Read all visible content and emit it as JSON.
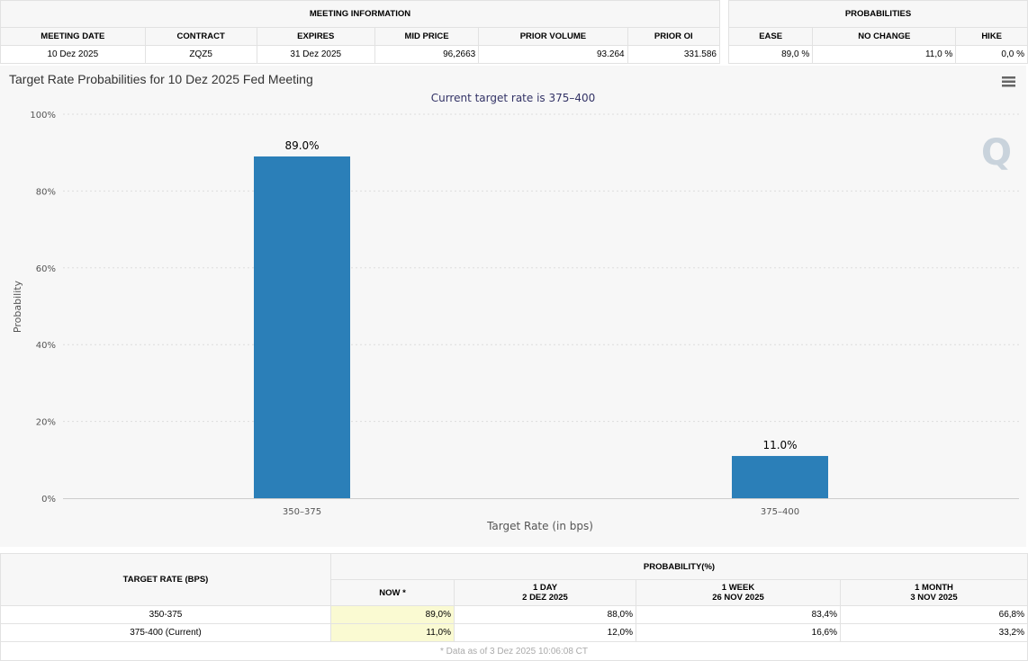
{
  "meeting_info": {
    "title": "MEETING INFORMATION",
    "headers": [
      "MEETING DATE",
      "CONTRACT",
      "EXPIRES",
      "MID PRICE",
      "PRIOR VOLUME",
      "PRIOR OI"
    ],
    "values": [
      "10 Dez 2025",
      "ZQZ5",
      "31 Dez 2025",
      "96,2663",
      "93.264",
      "331.586"
    ]
  },
  "probabilities": {
    "title": "PROBABILITIES",
    "headers": [
      "EASE",
      "NO CHANGE",
      "HIKE"
    ],
    "values": [
      "89,0 %",
      "11,0 %",
      "0,0 %"
    ]
  },
  "chart_data": {
    "type": "bar",
    "title": "Target Rate Probabilities for 10 Dez 2025 Fed Meeting",
    "subtitle": "Current target rate is 375–400",
    "xlabel": "Target Rate (in bps)",
    "ylabel": "Probability",
    "categories": [
      "350–375",
      "375–400"
    ],
    "values": [
      89.0,
      11.0
    ],
    "data_labels": [
      "89.0%",
      "11.0%"
    ],
    "ylim": [
      0,
      100
    ],
    "yticks": [
      "0%",
      "20%",
      "40%",
      "60%",
      "80%",
      "100%"
    ],
    "grid": true,
    "color": "#2b7fb8"
  },
  "prob_table": {
    "col1": "TARGET RATE (BPS)",
    "group": "PROBABILITY(%)",
    "cols": [
      [
        "NOW *",
        ""
      ],
      [
        "1 DAY",
        "2 DEZ 2025"
      ],
      [
        "1 WEEK",
        "26 NOV 2025"
      ],
      [
        "1 MONTH",
        "3 NOV 2025"
      ]
    ],
    "rows": [
      {
        "rate": "350-375",
        "vals": [
          "89,0%",
          "88,0%",
          "83,4%",
          "66,8%"
        ]
      },
      {
        "rate": "375-400 (Current)",
        "vals": [
          "11,0%",
          "12,0%",
          "16,6%",
          "33,2%"
        ]
      }
    ],
    "footnote": "* Data as of 3 Dez 2025 10:06:08 CT"
  }
}
